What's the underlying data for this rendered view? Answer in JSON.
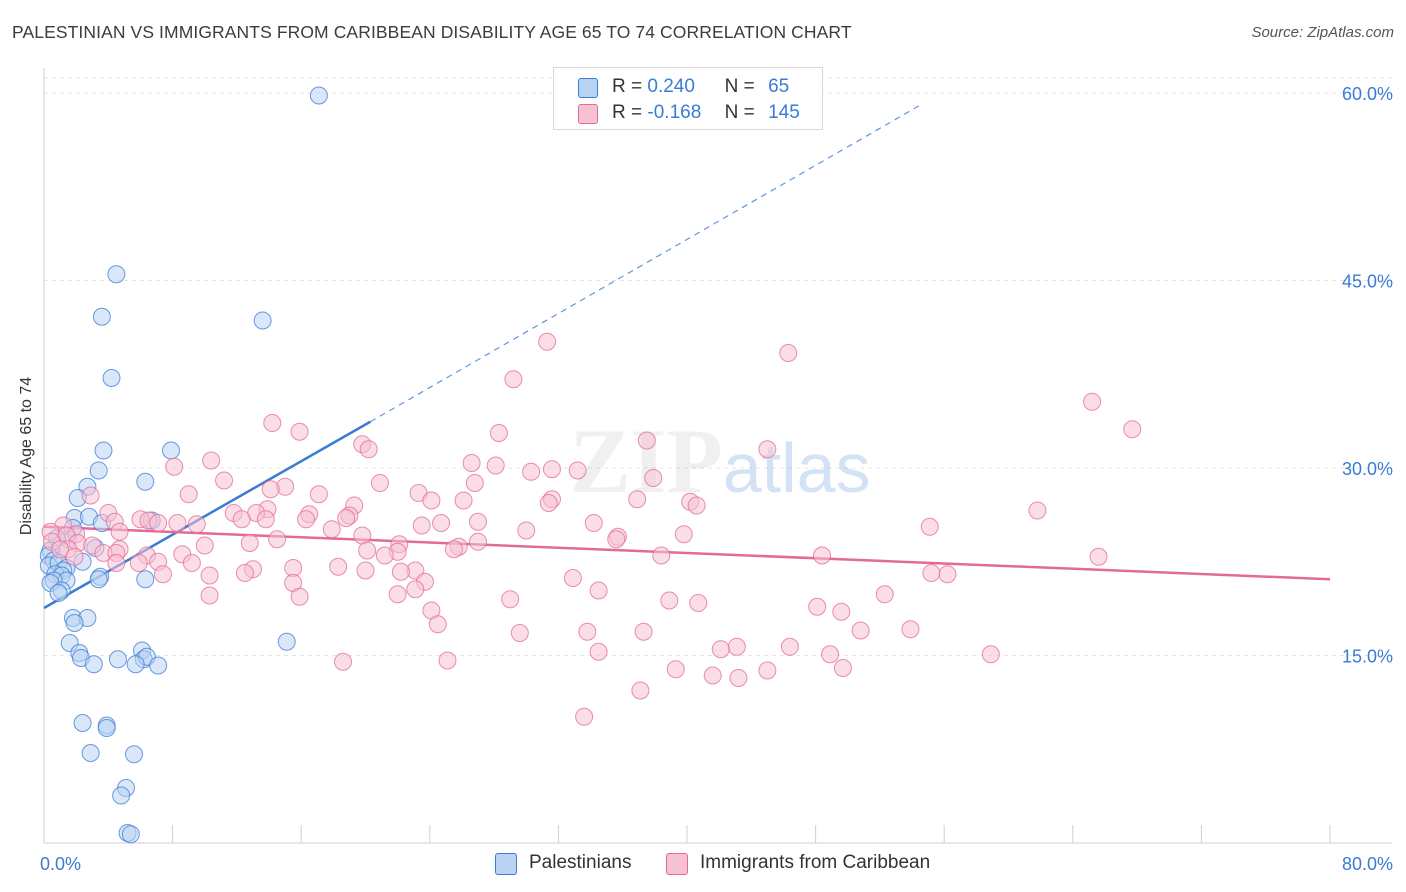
{
  "title": "PALESTINIAN VS IMMIGRANTS FROM CARIBBEAN DISABILITY AGE 65 TO 74 CORRELATION CHART",
  "source": "Source: ZipAtlas.com",
  "watermark": "ZIPatlas",
  "colors": {
    "blue": "#3a7bd5",
    "blue_fill": "#b9d3f3",
    "pink": "#e36a95",
    "pink_fill": "#f7c1d3",
    "grid": "#e4e4e4"
  },
  "legend": {
    "rows": [
      {
        "r_label": "R =",
        "r_value": "0.240",
        "n_label": "N =",
        "n_value": "65"
      },
      {
        "r_label": "R =",
        "r_value": "-0.168",
        "n_label": "N =",
        "n_value": "145"
      }
    ]
  },
  "bottom_legend": [
    "Palestinians",
    "Immigrants from Caribbean"
  ],
  "chart_data": {
    "type": "scatter",
    "title": "PALESTINIAN VS IMMIGRANTS FROM CARIBBEAN DISABILITY AGE 65 TO 74 CORRELATION CHART",
    "xlabel": "",
    "ylabel": "Disability Age 65 to 74",
    "xlim": [
      0,
      80
    ],
    "ylim": [
      0,
      62
    ],
    "x_tick_labels": [
      "0.0%",
      "80.0%"
    ],
    "y_ticks": [
      15,
      30,
      45,
      60
    ],
    "y_tick_labels": [
      "15.0%",
      "30.0%",
      "45.0%",
      "60.0%"
    ],
    "grid": true,
    "legend_position": "top-center",
    "series": [
      {
        "name": "Palestinians",
        "color": "#3a7bd5",
        "trend": {
          "x0": 0,
          "y0": 18.8,
          "x1": 20.3,
          "y1": 33.7,
          "dashed_to_x": 54.6,
          "dashed_to_y": 59.1
        },
        "points": [
          [
            17.1,
            59.8
          ],
          [
            4.5,
            45.5
          ],
          [
            3.6,
            42.1
          ],
          [
            13.6,
            41.8
          ],
          [
            4.2,
            37.2
          ],
          [
            7.9,
            31.4
          ],
          [
            3.7,
            31.4
          ],
          [
            3.4,
            29.8
          ],
          [
            6.3,
            28.9
          ],
          [
            2.7,
            28.5
          ],
          [
            2.1,
            27.6
          ],
          [
            1.9,
            26.0
          ],
          [
            2.8,
            26.1
          ],
          [
            3.6,
            25.6
          ],
          [
            6.7,
            25.8
          ],
          [
            1.8,
            25.2
          ],
          [
            1.5,
            24.3
          ],
          [
            0.8,
            24.4
          ],
          [
            3.2,
            23.6
          ],
          [
            0.4,
            23.4
          ],
          [
            0.3,
            23.0
          ],
          [
            0.6,
            22.6
          ],
          [
            0.3,
            22.2
          ],
          [
            2.4,
            22.5
          ],
          [
            0.9,
            22.4
          ],
          [
            1.4,
            22.0
          ],
          [
            1.2,
            21.8
          ],
          [
            0.7,
            21.5
          ],
          [
            1.1,
            21.4
          ],
          [
            1.4,
            21.0
          ],
          [
            0.6,
            21.0
          ],
          [
            0.4,
            20.8
          ],
          [
            3.5,
            21.3
          ],
          [
            6.3,
            21.1
          ],
          [
            3.4,
            21.1
          ],
          [
            1.1,
            20.2
          ],
          [
            0.9,
            20.0
          ],
          [
            1.8,
            18.0
          ],
          [
            2.7,
            18.0
          ],
          [
            1.9,
            17.6
          ],
          [
            1.6,
            16.0
          ],
          [
            15.1,
            16.1
          ],
          [
            2.2,
            15.2
          ],
          [
            6.1,
            15.4
          ],
          [
            2.3,
            14.8
          ],
          [
            4.6,
            14.7
          ],
          [
            6.2,
            14.7
          ],
          [
            6.4,
            14.9
          ],
          [
            3.1,
            14.3
          ],
          [
            5.7,
            14.3
          ],
          [
            7.1,
            14.2
          ],
          [
            2.4,
            9.6
          ],
          [
            3.9,
            9.4
          ],
          [
            3.9,
            9.2
          ],
          [
            2.9,
            7.2
          ],
          [
            5.6,
            7.1
          ],
          [
            5.1,
            4.4
          ],
          [
            4.8,
            3.8
          ],
          [
            5.2,
            0.8
          ],
          [
            5.4,
            0.7
          ]
        ]
      },
      {
        "name": "Immigrants from Caribbean",
        "color": "#e36a95",
        "trend": {
          "x0": 0,
          "y0": 25.3,
          "x1": 80,
          "y1": 21.1
        },
        "points": [
          [
            31.3,
            40.1
          ],
          [
            46.3,
            39.2
          ],
          [
            29.2,
            37.1
          ],
          [
            65.2,
            35.3
          ],
          [
            67.7,
            33.1
          ],
          [
            14.2,
            33.6
          ],
          [
            15.9,
            32.9
          ],
          [
            28.3,
            32.8
          ],
          [
            37.5,
            32.2
          ],
          [
            19.8,
            31.9
          ],
          [
            20.2,
            31.5
          ],
          [
            45.0,
            31.5
          ],
          [
            10.4,
            30.6
          ],
          [
            26.6,
            30.4
          ],
          [
            28.1,
            30.2
          ],
          [
            8.1,
            30.1
          ],
          [
            31.6,
            29.9
          ],
          [
            33.2,
            29.8
          ],
          [
            30.3,
            29.7
          ],
          [
            37.9,
            29.2
          ],
          [
            11.2,
            29.0
          ],
          [
            26.8,
            28.8
          ],
          [
            15.0,
            28.5
          ],
          [
            20.9,
            28.8
          ],
          [
            14.1,
            28.3
          ],
          [
            23.3,
            28.0
          ],
          [
            17.1,
            27.9
          ],
          [
            9.0,
            27.9
          ],
          [
            2.9,
            27.8
          ],
          [
            31.6,
            27.5
          ],
          [
            26.1,
            27.4
          ],
          [
            24.1,
            27.4
          ],
          [
            36.9,
            27.5
          ],
          [
            40.2,
            27.3
          ],
          [
            31.4,
            27.2
          ],
          [
            40.6,
            27.0
          ],
          [
            19.3,
            27.0
          ],
          [
            13.9,
            26.7
          ],
          [
            61.8,
            26.6
          ],
          [
            13.2,
            26.4
          ],
          [
            11.8,
            26.4
          ],
          [
            4.0,
            26.4
          ],
          [
            16.5,
            26.3
          ],
          [
            19.0,
            26.2
          ],
          [
            18.8,
            26.0
          ],
          [
            16.3,
            25.9
          ],
          [
            13.8,
            25.9
          ],
          [
            12.3,
            25.9
          ],
          [
            6.0,
            25.9
          ],
          [
            6.5,
            25.8
          ],
          [
            4.4,
            25.7
          ],
          [
            8.3,
            25.6
          ],
          [
            7.1,
            25.6
          ],
          [
            9.5,
            25.5
          ],
          [
            27.0,
            25.7
          ],
          [
            24.7,
            25.6
          ],
          [
            34.2,
            25.6
          ],
          [
            1.2,
            25.4
          ],
          [
            23.5,
            25.4
          ],
          [
            55.1,
            25.3
          ],
          [
            17.9,
            25.1
          ],
          [
            30.0,
            25.0
          ],
          [
            4.7,
            24.9
          ],
          [
            0.4,
            24.9
          ],
          [
            2.0,
            24.7
          ],
          [
            1.4,
            24.6
          ],
          [
            19.8,
            24.6
          ],
          [
            35.7,
            24.5
          ],
          [
            39.8,
            24.7
          ],
          [
            35.6,
            24.3
          ],
          [
            14.5,
            24.3
          ],
          [
            27.0,
            24.1
          ],
          [
            0.5,
            24.1
          ],
          [
            2.1,
            24.0
          ],
          [
            12.8,
            24.0
          ],
          [
            22.1,
            23.9
          ],
          [
            3.0,
            23.8
          ],
          [
            1.5,
            23.5
          ],
          [
            10.0,
            23.8
          ],
          [
            25.8,
            23.7
          ],
          [
            25.5,
            23.5
          ],
          [
            4.7,
            23.5
          ],
          [
            1.0,
            23.5
          ],
          [
            20.1,
            23.4
          ],
          [
            22.0,
            23.3
          ],
          [
            3.7,
            23.2
          ],
          [
            4.5,
            23.2
          ],
          [
            8.6,
            23.1
          ],
          [
            6.4,
            23.0
          ],
          [
            21.2,
            23.0
          ],
          [
            1.9,
            22.9
          ],
          [
            38.4,
            23.0
          ],
          [
            48.4,
            23.0
          ],
          [
            65.6,
            22.9
          ],
          [
            9.2,
            22.4
          ],
          [
            7.1,
            22.5
          ],
          [
            5.9,
            22.4
          ],
          [
            18.3,
            22.1
          ],
          [
            13.0,
            21.9
          ],
          [
            20.0,
            21.8
          ],
          [
            15.5,
            22.0
          ],
          [
            23.1,
            21.8
          ],
          [
            22.2,
            21.7
          ],
          [
            10.3,
            21.4
          ],
          [
            12.5,
            21.6
          ],
          [
            56.2,
            21.5
          ],
          [
            55.2,
            21.6
          ],
          [
            7.4,
            21.5
          ],
          [
            4.5,
            22.4
          ],
          [
            32.9,
            21.2
          ],
          [
            15.5,
            20.8
          ],
          [
            23.7,
            20.9
          ],
          [
            23.1,
            20.3
          ],
          [
            34.5,
            20.2
          ],
          [
            22.0,
            19.9
          ],
          [
            15.9,
            19.7
          ],
          [
            29.0,
            19.5
          ],
          [
            10.3,
            19.8
          ],
          [
            38.9,
            19.4
          ],
          [
            40.7,
            19.2
          ],
          [
            48.1,
            18.9
          ],
          [
            52.3,
            19.9
          ],
          [
            49.6,
            18.5
          ],
          [
            24.1,
            18.6
          ],
          [
            24.5,
            17.5
          ],
          [
            29.6,
            16.8
          ],
          [
            33.8,
            16.9
          ],
          [
            37.3,
            16.9
          ],
          [
            50.8,
            17.0
          ],
          [
            53.9,
            17.1
          ],
          [
            43.1,
            15.7
          ],
          [
            46.4,
            15.7
          ],
          [
            42.1,
            15.5
          ],
          [
            34.5,
            15.3
          ],
          [
            48.9,
            15.1
          ],
          [
            58.9,
            15.1
          ],
          [
            18.6,
            14.5
          ],
          [
            25.1,
            14.6
          ],
          [
            49.7,
            14.0
          ],
          [
            39.3,
            13.9
          ],
          [
            41.6,
            13.4
          ],
          [
            43.2,
            13.2
          ],
          [
            45.0,
            13.8
          ],
          [
            37.1,
            12.2
          ],
          [
            33.6,
            10.1
          ]
        ]
      }
    ]
  }
}
